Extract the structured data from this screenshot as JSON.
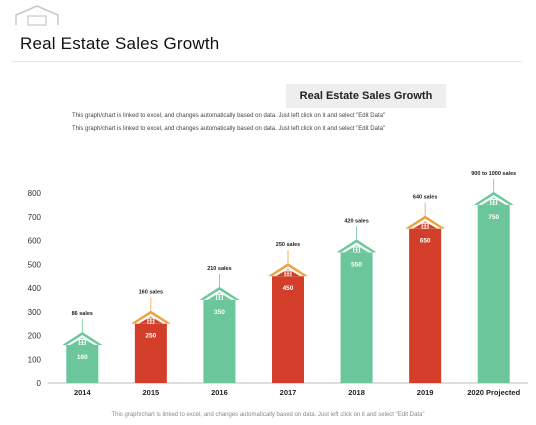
{
  "page": {
    "title": "Real Estate Sales Growth",
    "notes": [
      "This graph/chart is linked to excel, and changes automatically based on data. Just left click on it and select \"Edit Data\"",
      "This graph/chart is linked to excel, and changes automatically based on data. Just left click on it and select \"Edit Data\""
    ],
    "footer_note": "This graph/chart is linked to excel, and changes automatically based on data. Just left click on it and select \"Edit Data\"",
    "logo_icon": "house-outline-icon"
  },
  "chart_data": {
    "type": "bar",
    "title": "Real Estate Sales Growth",
    "xlabel": "",
    "ylabel": "",
    "ylim": [
      0,
      800
    ],
    "yticks": [
      0,
      100,
      200,
      300,
      400,
      500,
      600,
      700,
      800
    ],
    "grid": false,
    "categories": [
      "2014",
      "2015",
      "2016",
      "2017",
      "2018",
      "2019",
      "2020 Projected"
    ],
    "values": [
      160,
      250,
      350,
      450,
      550,
      650,
      750
    ],
    "value_labels": [
      "160",
      "250",
      "350",
      "450",
      "550",
      "650",
      "750"
    ],
    "annotations": [
      "86 sales",
      "160 sales",
      "210 sales",
      "250 sales",
      "420 sales",
      "640 sales",
      "900 to 1000 sales"
    ],
    "bar_colors": [
      "#6cc69b",
      "#d33e2b",
      "#6cc69b",
      "#d33e2b",
      "#6cc69b",
      "#d33e2b",
      "#6cc69b"
    ],
    "roof_colors": [
      "#6cc69b",
      "#e8a33d",
      "#6cc69b",
      "#e8a33d",
      "#6cc69b",
      "#e8a33d",
      "#6cc69b"
    ],
    "marker_icon": "house-icon"
  }
}
